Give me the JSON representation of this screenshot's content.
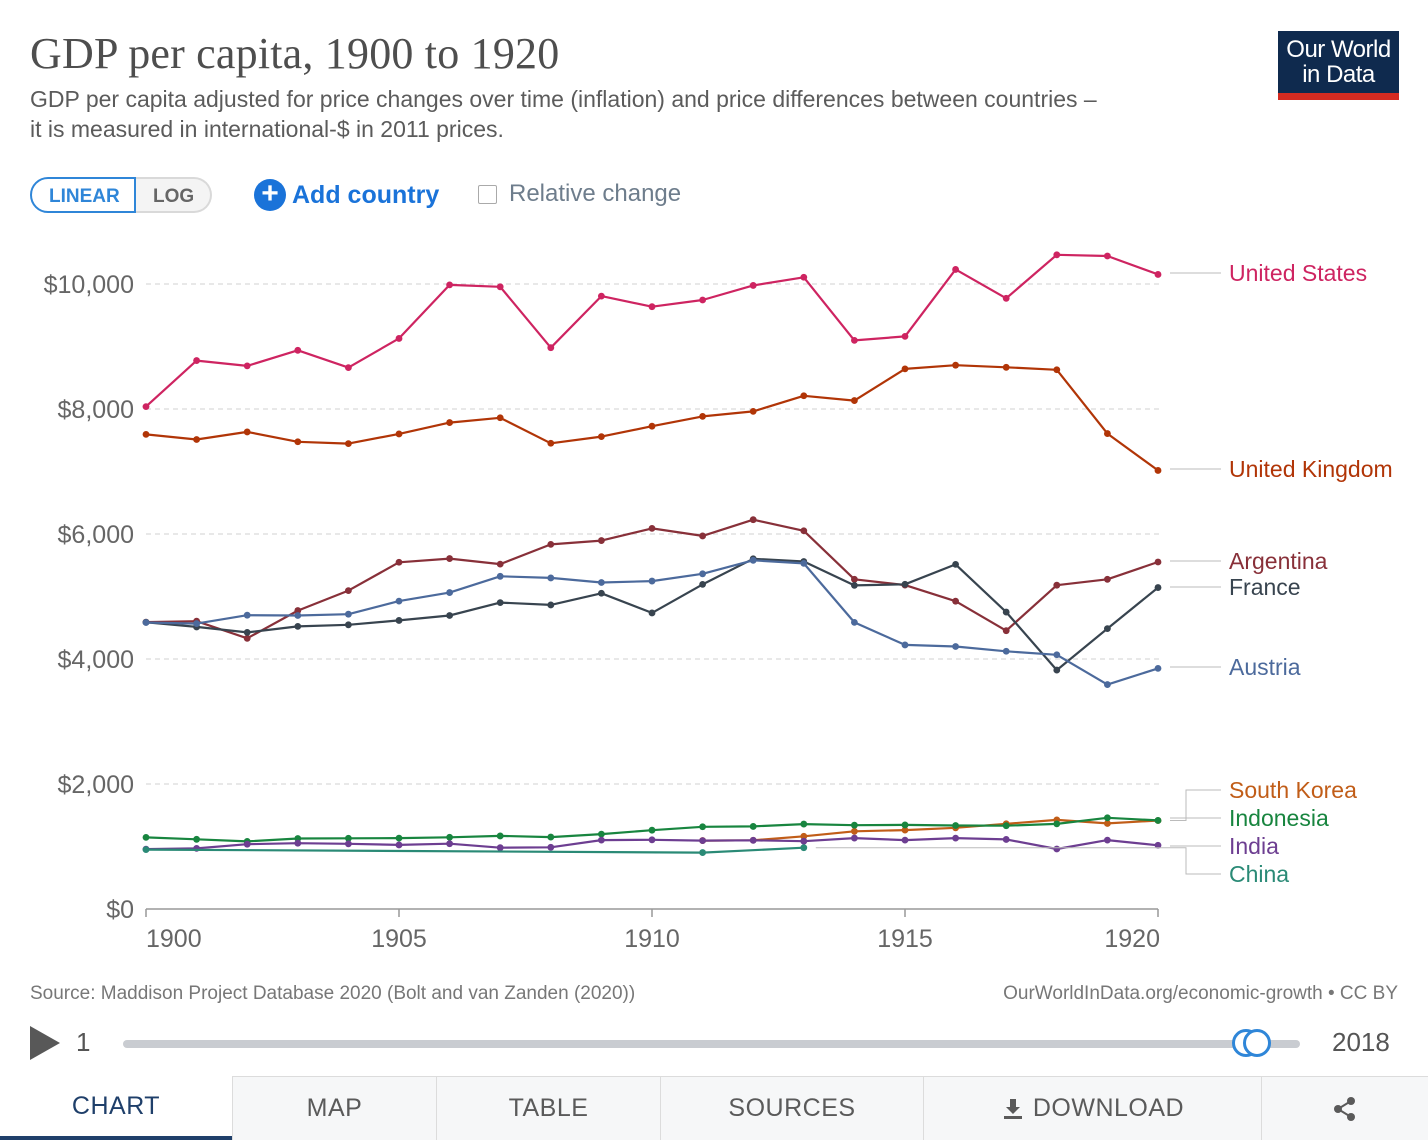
{
  "title": "GDP per capita, 1900 to 1920",
  "subtitle_line1": "GDP per capita adjusted for price changes over time (inflation) and price differences between countries –",
  "subtitle_line2": "it is measured in international-$ in 2011 prices.",
  "logo": {
    "line1": "Our World",
    "line2": "in Data"
  },
  "controls": {
    "linear": "LINEAR",
    "log": "LOG",
    "add_country": "Add country",
    "relative_change": "Relative change"
  },
  "footer": {
    "source": "Source: Maddison Project Database 2020 (Bolt and van Zanden (2020))",
    "license": "OurWorldInData.org/economic-growth • CC BY"
  },
  "timeline": {
    "start": "1",
    "end": "2018",
    "handle_start_fraction": 0.9545,
    "handle_end_fraction": 0.9633
  },
  "tabs": [
    "CHART",
    "MAP",
    "TABLE",
    "SOURCES",
    "DOWNLOAD"
  ],
  "icons": {
    "play": "play-icon",
    "plus": "plus-circle-icon",
    "download": "download-icon",
    "share": "share-icon"
  },
  "chart_data": {
    "type": "line",
    "ylim": [
      0,
      10500
    ],
    "xlim": [
      1900,
      1920
    ],
    "y_ticks": [
      {
        "value": 0,
        "label": "$0"
      },
      {
        "value": 2000,
        "label": "$2,000"
      },
      {
        "value": 4000,
        "label": "$4,000"
      },
      {
        "value": 6000,
        "label": "$6,000"
      },
      {
        "value": 8000,
        "label": "$8,000"
      },
      {
        "value": 10000,
        "label": "$10,000"
      }
    ],
    "x_ticks": [
      {
        "value": 1900,
        "label": "1900"
      },
      {
        "value": 1905,
        "label": "1905"
      },
      {
        "value": 1910,
        "label": "1910"
      },
      {
        "value": 1915,
        "label": "1915"
      },
      {
        "value": 1920,
        "label": "1920"
      }
    ],
    "grid": true,
    "legend": "right",
    "series": [
      {
        "name": "United States",
        "color": "#ce2461",
        "x": [
          1900,
          1901,
          1902,
          1903,
          1904,
          1905,
          1906,
          1907,
          1908,
          1909,
          1910,
          1911,
          1912,
          1913,
          1914,
          1915,
          1916,
          1917,
          1918,
          1919,
          1920
        ],
        "values": [
          8038,
          8775,
          8690,
          8939,
          8662,
          9129,
          9986,
          9955,
          8981,
          9806,
          9637,
          9744,
          9977,
          10108,
          9098,
          9162,
          10233,
          9771,
          10467,
          10448,
          10153
        ]
      },
      {
        "name": "United Kingdom",
        "color": "#b13507",
        "x": [
          1900,
          1901,
          1902,
          1903,
          1904,
          1905,
          1906,
          1907,
          1908,
          1909,
          1910,
          1911,
          1912,
          1913,
          1914,
          1915,
          1916,
          1917,
          1918,
          1919,
          1920
        ],
        "values": [
          7594,
          7512,
          7633,
          7476,
          7446,
          7601,
          7783,
          7860,
          7452,
          7558,
          7725,
          7882,
          7962,
          8212,
          8135,
          8642,
          8701,
          8667,
          8628,
          7607,
          7017
        ]
      },
      {
        "name": "Argentina",
        "color": "#883039",
        "x": [
          1900,
          1901,
          1902,
          1903,
          1904,
          1905,
          1906,
          1907,
          1908,
          1909,
          1910,
          1911,
          1912,
          1913,
          1914,
          1915,
          1916,
          1917,
          1918,
          1919,
          1920
        ],
        "values": [
          4590,
          4605,
          4331,
          4775,
          5094,
          5548,
          5607,
          5518,
          5834,
          5895,
          6090,
          5969,
          6229,
          6052,
          5275,
          5182,
          4925,
          4453,
          5181,
          5275,
          5552
        ]
      },
      {
        "name": "France",
        "color": "#38444f",
        "x": [
          1900,
          1901,
          1902,
          1903,
          1904,
          1905,
          1906,
          1907,
          1908,
          1909,
          1910,
          1911,
          1912,
          1913,
          1914,
          1915,
          1916,
          1917,
          1918,
          1919,
          1920
        ],
        "values": [
          4587,
          4513,
          4426,
          4522,
          4547,
          4617,
          4696,
          4902,
          4865,
          5052,
          4737,
          5194,
          5604,
          5560,
          5178,
          5196,
          5514,
          4751,
          3823,
          4486,
          5143
        ]
      },
      {
        "name": "Austria",
        "color": "#4c6a9c",
        "x": [
          1900,
          1901,
          1902,
          1903,
          1904,
          1905,
          1906,
          1907,
          1908,
          1909,
          1910,
          1911,
          1912,
          1913,
          1914,
          1915,
          1916,
          1917,
          1918,
          1919,
          1920
        ],
        "values": [
          4584,
          4567,
          4701,
          4696,
          4717,
          4926,
          5063,
          5323,
          5297,
          5224,
          5247,
          5363,
          5579,
          5530,
          4586,
          4225,
          4200,
          4124,
          4068,
          3591,
          3850
        ]
      },
      {
        "name": "South Korea",
        "color": "#c15d18",
        "x": [
          1911,
          1912,
          1913,
          1914,
          1915,
          1916,
          1917,
          1918,
          1919,
          1920
        ],
        "values": [
          1095,
          1100,
          1163,
          1243,
          1262,
          1299,
          1363,
          1426,
          1369,
          1416
        ]
      },
      {
        "name": "Indonesia",
        "color": "#18853f",
        "x": [
          1900,
          1901,
          1902,
          1903,
          1904,
          1905,
          1906,
          1907,
          1908,
          1909,
          1910,
          1911,
          1912,
          1913,
          1914,
          1915,
          1916,
          1917,
          1918,
          1919,
          1920
        ],
        "values": [
          1146,
          1115,
          1081,
          1128,
          1131,
          1134,
          1148,
          1169,
          1151,
          1198,
          1261,
          1316,
          1321,
          1359,
          1341,
          1345,
          1336,
          1333,
          1362,
          1459,
          1417
        ]
      },
      {
        "name": "India",
        "color": "#6d3e91",
        "x": [
          1900,
          1901,
          1902,
          1903,
          1904,
          1905,
          1906,
          1907,
          1908,
          1909,
          1910,
          1911,
          1912,
          1913,
          1914,
          1915,
          1916,
          1917,
          1918,
          1919,
          1920
        ],
        "values": [
          958,
          970,
          1037,
          1053,
          1043,
          1025,
          1045,
          981,
          987,
          1102,
          1107,
          1094,
          1099,
          1085,
          1135,
          1102,
          1134,
          1113,
          960,
          1102,
          1020
        ]
      },
      {
        "name": "China",
        "color": "#2a8a76",
        "x": [
          1900,
          1911,
          1913
        ],
        "values": [
          950,
          903,
          981
        ]
      }
    ]
  }
}
